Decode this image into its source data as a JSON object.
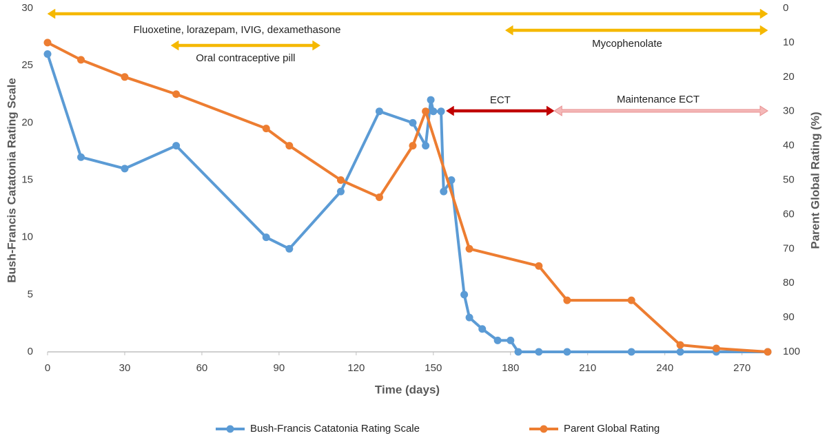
{
  "chart_data": {
    "type": "line",
    "xlabel": "Time (days)",
    "ylabel": "Bush-Francis Catatonia Rating Scale",
    "y2label": "Parent Global Rating (%)",
    "xlim": [
      0,
      280
    ],
    "xticks": [
      0,
      30,
      60,
      90,
      120,
      150,
      180,
      210,
      240,
      270
    ],
    "ylim": [
      0,
      30
    ],
    "yticks": [
      0,
      5,
      10,
      15,
      20,
      25,
      30
    ],
    "y2lim": [
      100,
      0
    ],
    "y2ticks": [
      0,
      10,
      20,
      30,
      40,
      50,
      60,
      70,
      80,
      90,
      100
    ],
    "legend": "bottom",
    "series": [
      {
        "name": "Bush-Francis Catatonia Rating Scale",
        "color": "#5b9bd5",
        "x": [
          0,
          13,
          30,
          50,
          85,
          94,
          114,
          129,
          142,
          147,
          149,
          150,
          153,
          154,
          157,
          162,
          164,
          169,
          175,
          180,
          183,
          191,
          202,
          227,
          246,
          260,
          280
        ],
        "values": [
          26,
          17,
          16,
          18,
          10,
          9,
          14,
          21,
          20,
          18,
          22,
          21,
          21,
          14,
          15,
          5,
          3,
          2,
          1,
          1,
          0,
          0,
          0,
          0,
          0,
          0,
          0
        ]
      },
      {
        "name": "Parent Global Rating",
        "color": "#ed7d31",
        "axis": "y2",
        "x": [
          0,
          13,
          30,
          50,
          85,
          94,
          114,
          129,
          142,
          147,
          164,
          191,
          202,
          227,
          246,
          260,
          280
        ],
        "values": [
          10,
          15,
          20,
          25,
          35,
          40,
          50,
          55,
          40,
          30,
          70,
          75,
          85,
          85,
          98,
          99,
          100
        ]
      }
    ],
    "annotations": [
      {
        "label": "Fluoxetine, lorazepam, IVIG, dexamethasone",
        "start": 0,
        "end": 280,
        "color": "#f5b800"
      },
      {
        "label": "Oral contraceptive pill",
        "start": 48,
        "end": 106,
        "color": "#f5b800"
      },
      {
        "label": "Mycophenolate",
        "start": 178,
        "end": 280,
        "color": "#f5b800"
      },
      {
        "label": "ECT",
        "start": 155,
        "end": 197,
        "color": "#c00000"
      },
      {
        "label": "Maintenance ECT",
        "start": 197,
        "end": 280,
        "color": "#f4b8b8"
      }
    ]
  }
}
